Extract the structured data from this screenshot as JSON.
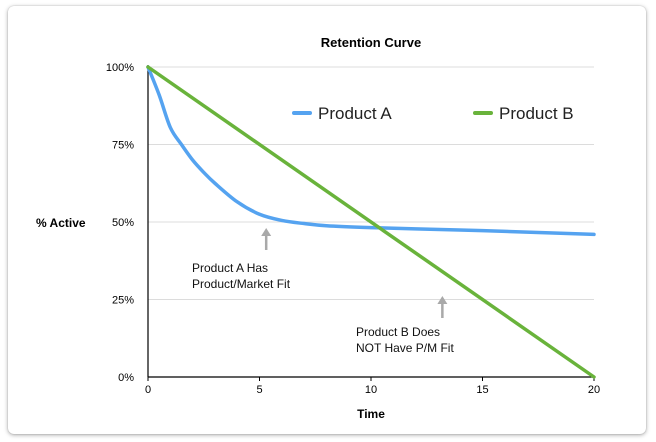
{
  "chart_data": {
    "type": "line",
    "title": "Retention Curve",
    "xlabel": "Time",
    "ylabel": "% Active",
    "xlim": [
      0,
      20
    ],
    "ylim": [
      0,
      100
    ],
    "x_ticks": [
      "0",
      "5",
      "10",
      "15",
      "20"
    ],
    "y_ticks": [
      "0%",
      "25%",
      "50%",
      "75%",
      "100%"
    ],
    "grid": "horizontal",
    "legend_position": "top-right",
    "series": [
      {
        "name": "Product A",
        "color": "#55a3f0",
        "x": [
          0,
          0.5,
          1,
          1.5,
          2,
          2.5,
          3,
          4,
          5,
          6,
          7,
          8,
          10,
          12,
          15,
          18,
          20
        ],
        "y": [
          100,
          91,
          80.5,
          75,
          70,
          66,
          62.5,
          56.5,
          52.5,
          50.5,
          49.5,
          48.8,
          48.2,
          47.8,
          47.2,
          46.5,
          46
        ]
      },
      {
        "name": "Product B",
        "color": "#69b33b",
        "x": [
          0,
          20
        ],
        "y": [
          100,
          0
        ]
      }
    ],
    "annotations": [
      {
        "text_lines": [
          "Product A Has",
          "Product/Market Fit"
        ],
        "arrow_x": 5.3,
        "arrow_y": 47
      },
      {
        "text_lines": [
          "Product B Does",
          "NOT Have P/M Fit"
        ],
        "arrow_x": 13.2,
        "arrow_y": 25.5
      }
    ]
  }
}
